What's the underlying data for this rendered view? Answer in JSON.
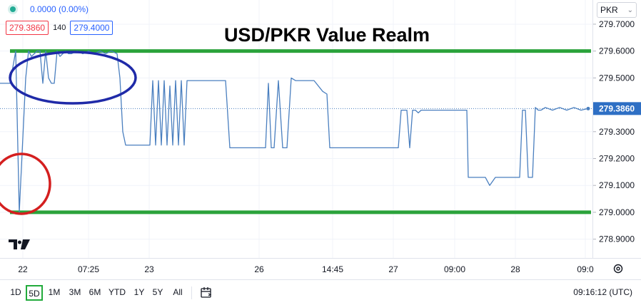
{
  "header": {
    "change_text": "0.0000 (0.00%)",
    "bid": "279.3860",
    "spread": "140",
    "ask": "279.4000",
    "currency": "PKR"
  },
  "chart_data": {
    "type": "line",
    "title": "USD/PKR Value Realm",
    "ylim": [
      278.83,
      279.79
    ],
    "y_ticks": [
      "279.7000",
      "279.6000",
      "279.5000",
      "279.3000",
      "279.2000",
      "279.1000",
      "279.0000",
      "278.9000"
    ],
    "x_tick_labels": [
      "22",
      "07:25",
      "23",
      "26",
      "14:45",
      "27",
      "09:00",
      "28",
      "09:0"
    ],
    "last_price": "279.3860",
    "grid": true,
    "series": [
      {
        "color": "#4a7fbf",
        "x": [
          0,
          14,
          22,
          27,
          36,
          40,
          44,
          48,
          52,
          56,
          60,
          64,
          68,
          72,
          76,
          80,
          84,
          88,
          92,
          96,
          100,
          108,
          116,
          124,
          132,
          140,
          148,
          156,
          164,
          168,
          172,
          176,
          180,
          192,
          204,
          210,
          214,
          218,
          222,
          226,
          230,
          234,
          238,
          242,
          246,
          250,
          254,
          258,
          262,
          266,
          270,
          280,
          292,
          304,
          316,
          322,
          330,
          345,
          360,
          372,
          376,
          380,
          384,
          390,
          396,
          402,
          408,
          414,
          418,
          426,
          440,
          452,
          458,
          462,
          466,
          480,
          500,
          520,
          540,
          558,
          562,
          570,
          574,
          578,
          582,
          586,
          590,
          600,
          620,
          640,
          654,
          656,
          664,
          672,
          680,
          686,
          694,
          704,
          712,
          724,
          728,
          732,
          736,
          740,
          746,
          750,
          754,
          758,
          764,
          774,
          784,
          794,
          804,
          814,
          824
        ],
        "y": [
          279.48,
          279.48,
          279.6,
          279.0,
          279.5,
          279.6,
          279.58,
          279.59,
          279.6,
          279.6,
          279.48,
          279.6,
          279.5,
          279.48,
          279.48,
          279.6,
          279.58,
          279.59,
          279.6,
          279.59,
          279.59,
          279.6,
          279.59,
          279.6,
          279.59,
          279.6,
          279.59,
          279.6,
          279.59,
          279.5,
          279.3,
          279.25,
          279.25,
          279.25,
          279.25,
          279.25,
          279.49,
          279.25,
          279.49,
          279.25,
          279.49,
          279.25,
          279.47,
          279.25,
          279.49,
          279.25,
          279.49,
          279.25,
          279.49,
          279.49,
          279.49,
          279.49,
          279.49,
          279.49,
          279.49,
          279.24,
          279.24,
          279.24,
          279.24,
          279.24,
          279.48,
          279.24,
          279.24,
          279.49,
          279.24,
          279.24,
          279.5,
          279.49,
          279.49,
          279.49,
          279.49,
          279.45,
          279.44,
          279.24,
          279.24,
          279.24,
          279.24,
          279.24,
          279.24,
          279.24,
          279.38,
          279.38,
          279.24,
          279.38,
          279.38,
          279.37,
          279.38,
          279.38,
          279.38,
          279.38,
          279.38,
          279.13,
          279.13,
          279.13,
          279.13,
          279.1,
          279.13,
          279.13,
          279.13,
          279.13,
          279.13,
          279.38,
          279.38,
          279.13,
          279.13,
          279.39,
          279.38,
          279.38,
          279.39,
          279.38,
          279.39,
          279.38,
          279.39,
          279.38,
          279.386
        ]
      }
    ],
    "annotations": {
      "resistance_level": 279.6,
      "support_level": 279.0,
      "line_color": "#2ba33b"
    }
  },
  "toolbar": {
    "ranges": [
      "1D",
      "5D",
      "1M",
      "3M",
      "6M",
      "YTD",
      "1Y",
      "5Y",
      "All"
    ],
    "active_range": "5D",
    "clock": "09:16:12 (UTC)"
  }
}
